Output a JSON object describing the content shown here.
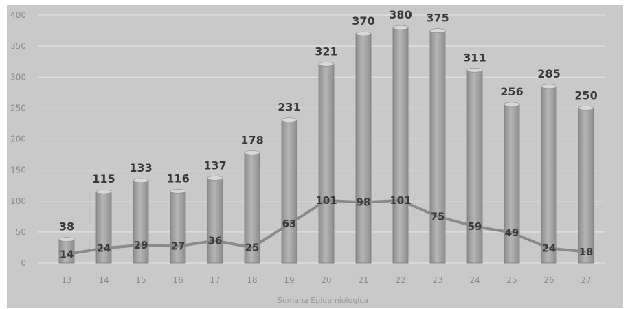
{
  "chart_data": {
    "type": "bar",
    "categories": [
      "13",
      "14",
      "15",
      "16",
      "17",
      "18",
      "19",
      "20",
      "21",
      "22",
      "23",
      "24",
      "25",
      "26",
      "27"
    ],
    "series": [
      {
        "type": "bar",
        "values": [
          38,
          115,
          133,
          116,
          137,
          178,
          231,
          321,
          370,
          380,
          375,
          311,
          256,
          285,
          250
        ]
      },
      {
        "type": "line",
        "values": [
          14,
          24,
          29,
          27,
          36,
          25,
          63,
          101,
          98,
          101,
          75,
          59,
          49,
          24,
          18
        ]
      }
    ],
    "title": "",
    "xlabel": "Semana Epidemiologica",
    "ylabel": "",
    "ylim": [
      0,
      400
    ],
    "yticks": [
      0,
      50,
      100,
      150,
      200,
      250,
      300,
      350,
      400
    ],
    "grid": true,
    "legend": "none",
    "colors": {
      "background": "#c9c9c9",
      "bar": "#8e8e8e",
      "bar_highlight": "#b5b5b5",
      "line": "#8a8a8a",
      "grid": "#e2e2e2"
    }
  }
}
